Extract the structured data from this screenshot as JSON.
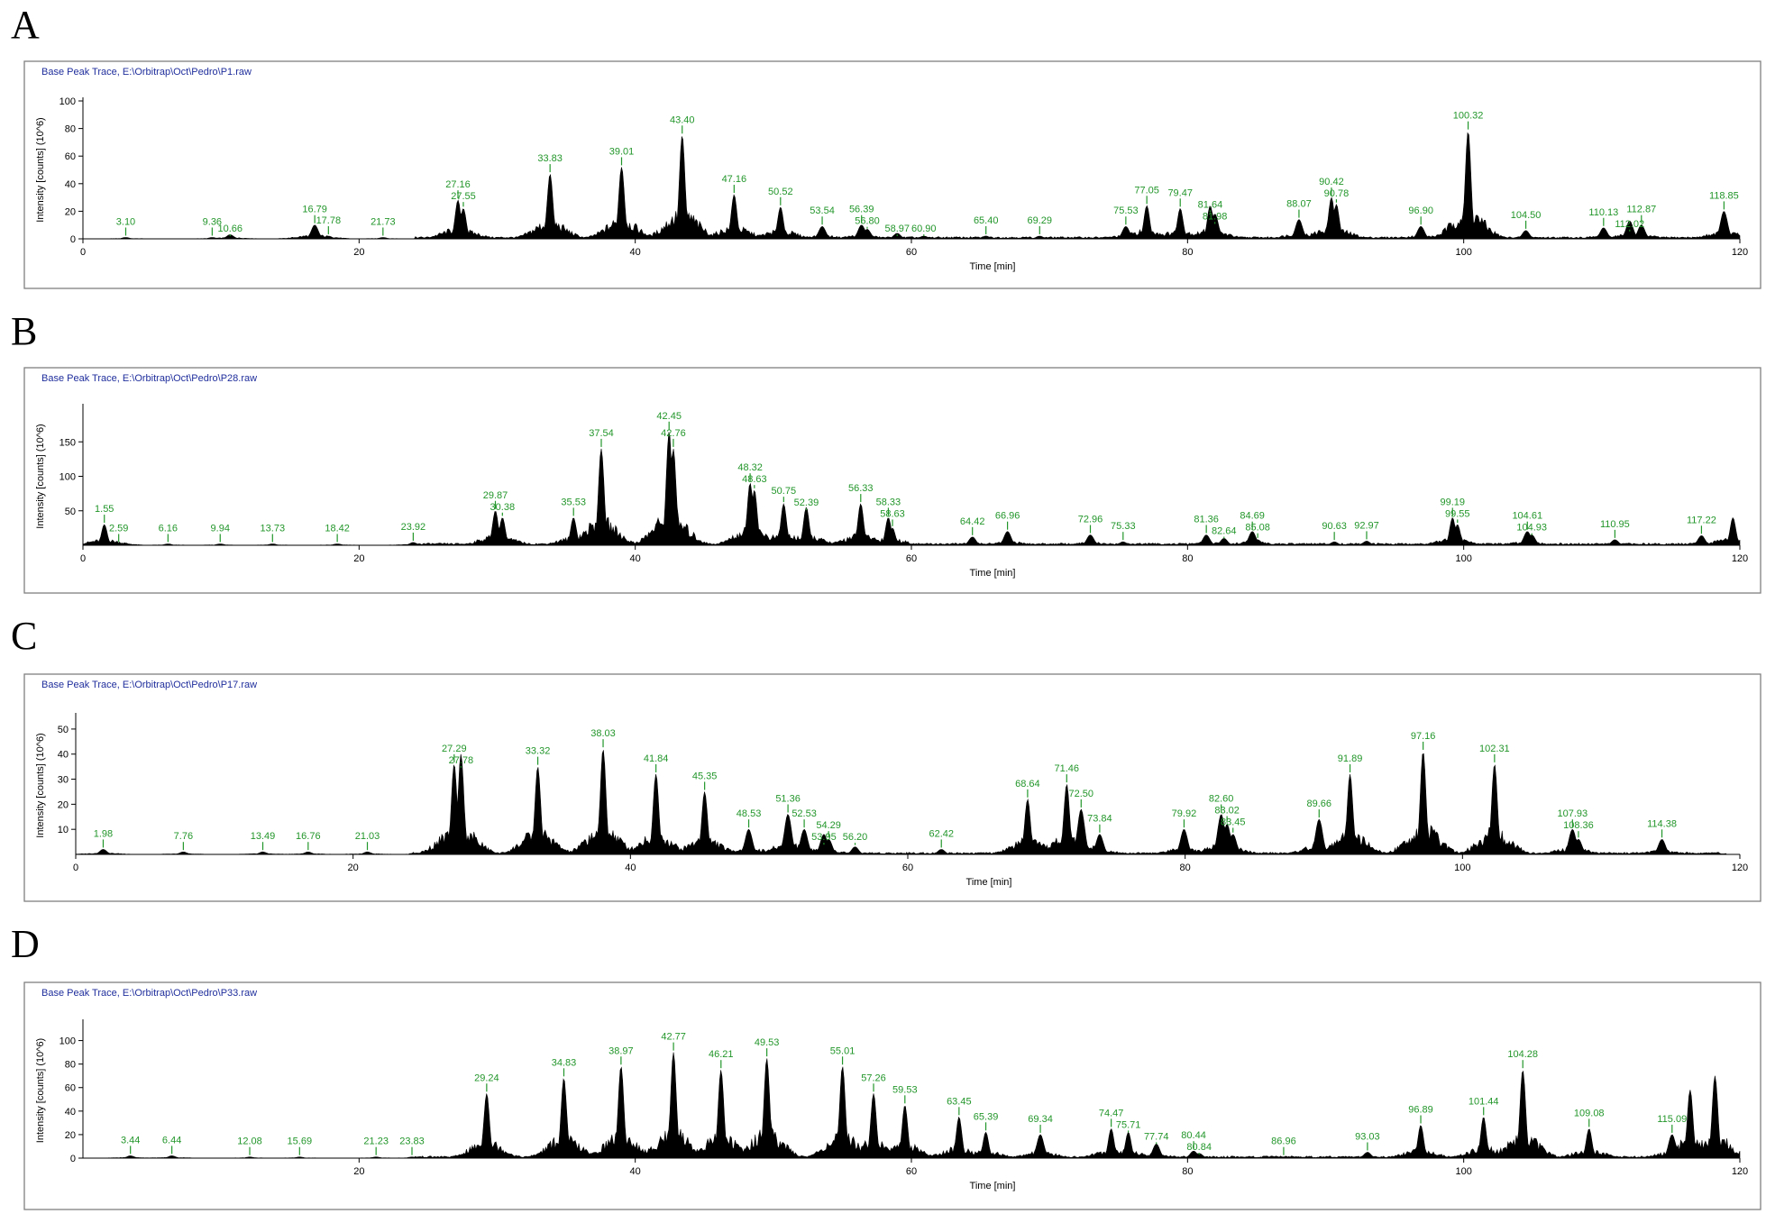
{
  "chart_data": [
    {
      "type": "line",
      "panel_label": "A",
      "title": "Base Peak Trace, E:\\Orbitrap\\Oct\\Pedro\\P1.raw",
      "xlabel": "Time [min]",
      "ylabel": "Intensity [counts] (10^6)",
      "xlim": [
        0,
        120
      ],
      "ylim": [
        0,
        100
      ],
      "x_ticks": [
        0,
        20,
        40,
        60,
        80,
        100,
        120
      ],
      "y_ticks": [
        0,
        20,
        40,
        60,
        80,
        100
      ],
      "peaks": [
        {
          "x": 3.1,
          "y": 1,
          "label": "3.10"
        },
        {
          "x": 9.36,
          "y": 1,
          "label": "9.36"
        },
        {
          "x": 10.66,
          "y": 3,
          "label": "10.66"
        },
        {
          "x": 16.79,
          "y": 10,
          "label": "16.79"
        },
        {
          "x": 17.78,
          "y": 2,
          "label": "17.78"
        },
        {
          "x": 21.73,
          "y": 1,
          "label": "21.73"
        },
        {
          "x": 27.16,
          "y": 28,
          "label": "27.16"
        },
        {
          "x": 27.55,
          "y": 22,
          "label": "27.55"
        },
        {
          "x": 33.83,
          "y": 47,
          "label": "33.83"
        },
        {
          "x": 39.01,
          "y": 52,
          "label": "39.01"
        },
        {
          "x": 43.4,
          "y": 75,
          "label": "43.40"
        },
        {
          "x": 47.16,
          "y": 32,
          "label": "47.16"
        },
        {
          "x": 50.52,
          "y": 23,
          "label": "50.52"
        },
        {
          "x": 53.54,
          "y": 9,
          "label": "53.54"
        },
        {
          "x": 56.39,
          "y": 10,
          "label": "56.39"
        },
        {
          "x": 56.8,
          "y": 7,
          "label": "56.80"
        },
        {
          "x": 58.97,
          "y": 4,
          "label": "58.97"
        },
        {
          "x": 60.9,
          "y": 2,
          "label": "60.90"
        },
        {
          "x": 65.4,
          "y": 2,
          "label": "65.40"
        },
        {
          "x": 69.29,
          "y": 2,
          "label": "69.29"
        },
        {
          "x": 75.53,
          "y": 9,
          "label": "75.53"
        },
        {
          "x": 77.05,
          "y": 24,
          "label": "77.05"
        },
        {
          "x": 79.47,
          "y": 22,
          "label": "79.47"
        },
        {
          "x": 81.64,
          "y": 24,
          "label": "81.64"
        },
        {
          "x": 81.98,
          "y": 18,
          "label": "81.98"
        },
        {
          "x": 88.07,
          "y": 14,
          "label": "88.07"
        },
        {
          "x": 90.42,
          "y": 30,
          "label": "90.42"
        },
        {
          "x": 90.78,
          "y": 25,
          "label": "90.78"
        },
        {
          "x": 96.9,
          "y": 9,
          "label": "96.90"
        },
        {
          "x": 100.32,
          "y": 78,
          "label": "100.32"
        },
        {
          "x": 104.5,
          "y": 6,
          "label": "104.50"
        },
        {
          "x": 110.13,
          "y": 8,
          "label": "110.13"
        },
        {
          "x": 112.02,
          "y": 13,
          "label": "112.02"
        },
        {
          "x": 112.87,
          "y": 10,
          "label": "112.87"
        },
        {
          "x": 118.85,
          "y": 20,
          "label": "118.85"
        }
      ]
    },
    {
      "type": "line",
      "panel_label": "B",
      "title": "Base Peak Trace, E:\\Orbitrap\\Oct\\Pedro\\P28.raw",
      "xlabel": "Time [min]",
      "ylabel": "Intensity [counts] (10^6)",
      "xlim": [
        0,
        120
      ],
      "ylim": [
        0,
        200
      ],
      "x_ticks": [
        0,
        20,
        40,
        60,
        80,
        100,
        120
      ],
      "y_ticks": [
        50,
        100,
        150
      ],
      "peaks": [
        {
          "x": 1.55,
          "y": 30,
          "label": "1.55"
        },
        {
          "x": 2.59,
          "y": 2,
          "label": "2.59"
        },
        {
          "x": 6.16,
          "y": 2,
          "label": "6.16"
        },
        {
          "x": 9.94,
          "y": 2,
          "label": "9.94"
        },
        {
          "x": 13.73,
          "y": 2,
          "label": "13.73"
        },
        {
          "x": 18.42,
          "y": 2,
          "label": "18.42"
        },
        {
          "x": 23.92,
          "y": 4,
          "label": "23.92"
        },
        {
          "x": 29.87,
          "y": 50,
          "label": "29.87"
        },
        {
          "x": 30.38,
          "y": 40,
          "label": "30.38"
        },
        {
          "x": 35.53,
          "y": 40,
          "label": "35.53"
        },
        {
          "x": 37.54,
          "y": 140,
          "label": "37.54"
        },
        {
          "x": 42.45,
          "y": 165,
          "label": "42.45"
        },
        {
          "x": 42.76,
          "y": 140,
          "label": "42.76"
        },
        {
          "x": 48.32,
          "y": 90,
          "label": "48.32"
        },
        {
          "x": 48.63,
          "y": 80,
          "label": "48.63"
        },
        {
          "x": 50.75,
          "y": 60,
          "label": "50.75"
        },
        {
          "x": 52.39,
          "y": 55,
          "label": "52.39"
        },
        {
          "x": 56.33,
          "y": 60,
          "label": "56.33"
        },
        {
          "x": 58.33,
          "y": 40,
          "label": "58.33"
        },
        {
          "x": 58.63,
          "y": 25,
          "label": "58.63"
        },
        {
          "x": 64.42,
          "y": 12,
          "label": "64.42"
        },
        {
          "x": 66.96,
          "y": 20,
          "label": "66.96"
        },
        {
          "x": 72.96,
          "y": 15,
          "label": "72.96"
        },
        {
          "x": 75.33,
          "y": 5,
          "label": "75.33"
        },
        {
          "x": 81.36,
          "y": 15,
          "label": "81.36"
        },
        {
          "x": 82.64,
          "y": 10,
          "label": "82.64"
        },
        {
          "x": 84.69,
          "y": 20,
          "label": "84.69"
        },
        {
          "x": 85.08,
          "y": 8,
          "label": "85.08"
        },
        {
          "x": 90.63,
          "y": 5,
          "label": "90.63"
        },
        {
          "x": 92.97,
          "y": 6,
          "label": "92.97"
        },
        {
          "x": 99.19,
          "y": 40,
          "label": "99.19"
        },
        {
          "x": 99.55,
          "y": 30,
          "label": "99.55"
        },
        {
          "x": 104.61,
          "y": 20,
          "label": "104.61"
        },
        {
          "x": 104.93,
          "y": 15,
          "label": "104.93"
        },
        {
          "x": 110.95,
          "y": 8,
          "label": "110.95"
        },
        {
          "x": 117.22,
          "y": 14,
          "label": "117.22"
        },
        {
          "x": 119.5,
          "y": 40,
          "label": ""
        }
      ]
    },
    {
      "type": "line",
      "panel_label": "C",
      "title": "Base Peak Trace, E:\\Orbitrap\\Oct\\Pedro\\P17.raw",
      "xlabel": "Time [min]",
      "ylabel": "Intensity [counts] (10^6)",
      "xlim": [
        0,
        120
      ],
      "ylim": [
        0,
        55
      ],
      "x_ticks": [
        0,
        20,
        40,
        60,
        80,
        100,
        120
      ],
      "y_ticks": [
        10,
        20,
        30,
        40,
        50
      ],
      "peaks": [
        {
          "x": 1.98,
          "y": 2,
          "label": "1.98"
        },
        {
          "x": 7.76,
          "y": 1,
          "label": "7.76"
        },
        {
          "x": 13.49,
          "y": 1,
          "label": "13.49"
        },
        {
          "x": 16.76,
          "y": 1,
          "label": "16.76"
        },
        {
          "x": 21.03,
          "y": 1,
          "label": "21.03"
        },
        {
          "x": 27.29,
          "y": 36,
          "label": "27.29"
        },
        {
          "x": 27.78,
          "y": 40,
          "label": "27.78"
        },
        {
          "x": 33.32,
          "y": 35,
          "label": "33.32"
        },
        {
          "x": 38.03,
          "y": 42,
          "label": "38.03"
        },
        {
          "x": 41.84,
          "y": 32,
          "label": "41.84"
        },
        {
          "x": 45.35,
          "y": 25,
          "label": "45.35"
        },
        {
          "x": 48.53,
          "y": 10,
          "label": "48.53"
        },
        {
          "x": 51.36,
          "y": 16,
          "label": "51.36"
        },
        {
          "x": 52.53,
          "y": 10,
          "label": "52.53"
        },
        {
          "x": 54.29,
          "y": 6,
          "label": "54.29"
        },
        {
          "x": 53.95,
          "y": 8,
          "label": "53.95"
        },
        {
          "x": 56.2,
          "y": 3,
          "label": "56.20"
        },
        {
          "x": 62.42,
          "y": 2,
          "label": "62.42"
        },
        {
          "x": 68.64,
          "y": 22,
          "label": "68.64"
        },
        {
          "x": 71.46,
          "y": 28,
          "label": "71.46"
        },
        {
          "x": 72.5,
          "y": 18,
          "label": "72.50"
        },
        {
          "x": 73.84,
          "y": 8,
          "label": "73.84"
        },
        {
          "x": 79.92,
          "y": 10,
          "label": "79.92"
        },
        {
          "x": 82.6,
          "y": 16,
          "label": "82.60"
        },
        {
          "x": 83.02,
          "y": 12,
          "label": "83.02"
        },
        {
          "x": 83.45,
          "y": 8,
          "label": "83.45"
        },
        {
          "x": 89.66,
          "y": 14,
          "label": "89.66"
        },
        {
          "x": 91.89,
          "y": 32,
          "label": "91.89"
        },
        {
          "x": 97.16,
          "y": 41,
          "label": "97.16"
        },
        {
          "x": 102.31,
          "y": 36,
          "label": "102.31"
        },
        {
          "x": 107.93,
          "y": 10,
          "label": "107.93"
        },
        {
          "x": 108.36,
          "y": 6,
          "label": "108.36"
        },
        {
          "x": 114.38,
          "y": 6,
          "label": "114.38"
        }
      ]
    },
    {
      "type": "line",
      "panel_label": "D",
      "title": "Base Peak Trace, E:\\Orbitrap\\Oct\\Pedro\\P33.raw",
      "xlabel": "Time [min]",
      "ylabel": "Intensity [counts] (10^6)",
      "xlim": [
        0,
        120
      ],
      "ylim": [
        0,
        115
      ],
      "x_ticks": [
        20,
        40,
        60,
        80,
        100,
        120
      ],
      "y_ticks": [
        0,
        20,
        40,
        60,
        80,
        100
      ],
      "peaks": [
        {
          "x": 3.44,
          "y": 2,
          "label": "3.44"
        },
        {
          "x": 6.44,
          "y": 2,
          "label": "6.44"
        },
        {
          "x": 12.08,
          "y": 1,
          "label": "12.08"
        },
        {
          "x": 15.69,
          "y": 1,
          "label": "15.69"
        },
        {
          "x": 21.23,
          "y": 1,
          "label": "21.23"
        },
        {
          "x": 23.83,
          "y": 1,
          "label": "23.83"
        },
        {
          "x": 29.24,
          "y": 55,
          "label": "29.24"
        },
        {
          "x": 34.83,
          "y": 68,
          "label": "34.83"
        },
        {
          "x": 38.97,
          "y": 78,
          "label": "38.97"
        },
        {
          "x": 42.77,
          "y": 90,
          "label": "42.77"
        },
        {
          "x": 46.21,
          "y": 75,
          "label": "46.21"
        },
        {
          "x": 49.53,
          "y": 85,
          "label": "49.53"
        },
        {
          "x": 55.01,
          "y": 78,
          "label": "55.01"
        },
        {
          "x": 57.26,
          "y": 55,
          "label": "57.26"
        },
        {
          "x": 59.53,
          "y": 45,
          "label": "59.53"
        },
        {
          "x": 63.45,
          "y": 35,
          "label": "63.45"
        },
        {
          "x": 65.39,
          "y": 22,
          "label": "65.39"
        },
        {
          "x": 69.34,
          "y": 20,
          "label": "69.34"
        },
        {
          "x": 74.47,
          "y": 25,
          "label": "74.47"
        },
        {
          "x": 75.71,
          "y": 22,
          "label": "75.71"
        },
        {
          "x": 77.74,
          "y": 12,
          "label": "77.74"
        },
        {
          "x": 80.44,
          "y": 6,
          "label": "80.44"
        },
        {
          "x": 80.84,
          "y": 4,
          "label": "80.84"
        },
        {
          "x": 86.96,
          "y": 1,
          "label": "86.96"
        },
        {
          "x": 93.03,
          "y": 5,
          "label": "93.03"
        },
        {
          "x": 96.89,
          "y": 28,
          "label": "96.89"
        },
        {
          "x": 101.44,
          "y": 35,
          "label": "101.44"
        },
        {
          "x": 104.28,
          "y": 75,
          "label": "104.28"
        },
        {
          "x": 109.08,
          "y": 25,
          "label": "109.08"
        },
        {
          "x": 115.09,
          "y": 20,
          "label": "115.09"
        },
        {
          "x": 116.4,
          "y": 58,
          "label": ""
        },
        {
          "x": 118.2,
          "y": 70,
          "label": ""
        }
      ]
    }
  ]
}
